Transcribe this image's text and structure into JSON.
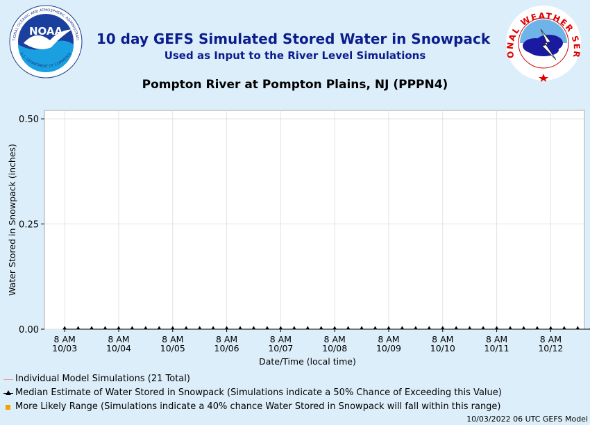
{
  "header": {
    "title": "10 day GEFS Simulated Stored Water in Snowpack",
    "subtitle": "Used as Input to the River Level Simulations",
    "location": "Pompton River at Pompton Plains, NJ (PPPN4)",
    "noaa_logo_text": "NOAA",
    "noaa_ring_text": "NATIONAL OCEANIC AND ATMOSPHERIC ADMINISTRATION",
    "noaa_ring_bottom": "U.S. DEPARTMENT OF COMMERCE",
    "nws_ring_text": "NATIONAL WEATHER SERVICE"
  },
  "chart_data": {
    "type": "line",
    "title": "10 day GEFS Simulated Stored Water in Snowpack",
    "xlabel": "Date/Time (local time)",
    "ylabel": "Water Stored in Snowpack (inches)",
    "ylim": [
      0,
      0.52
    ],
    "yticks": [
      "0.00",
      "0.25",
      "0.50"
    ],
    "ytick_values": [
      0,
      0.25,
      0.5
    ],
    "xticks": [
      {
        "time": "8 AM",
        "date": "10/03"
      },
      {
        "time": "8 AM",
        "date": "10/04"
      },
      {
        "time": "8 AM",
        "date": "10/05"
      },
      {
        "time": "8 AM",
        "date": "10/06"
      },
      {
        "time": "8 AM",
        "date": "10/07"
      },
      {
        "time": "8 AM",
        "date": "10/08"
      },
      {
        "time": "8 AM",
        "date": "10/09"
      },
      {
        "time": "8 AM",
        "date": "10/10"
      },
      {
        "time": "8 AM",
        "date": "10/11"
      },
      {
        "time": "8 AM",
        "date": "10/12"
      }
    ],
    "grid": true,
    "series": [
      {
        "name": "Median Estimate of Water Stored in Snowpack",
        "marker": "triangle",
        "color": "#000000",
        "x": [
          "10/03 08:00",
          "10/03 14:00",
          "10/03 20:00",
          "10/04 02:00",
          "10/04 08:00",
          "10/04 14:00",
          "10/04 20:00",
          "10/05 02:00",
          "10/05 08:00",
          "10/05 14:00",
          "10/05 20:00",
          "10/06 02:00",
          "10/06 08:00",
          "10/06 14:00",
          "10/06 20:00",
          "10/07 02:00",
          "10/07 08:00",
          "10/07 14:00",
          "10/07 20:00",
          "10/08 02:00",
          "10/08 08:00",
          "10/08 14:00",
          "10/08 20:00",
          "10/09 02:00",
          "10/09 08:00",
          "10/09 14:00",
          "10/09 20:00",
          "10/10 02:00",
          "10/10 08:00",
          "10/10 14:00",
          "10/10 20:00",
          "10/11 02:00",
          "10/11 08:00",
          "10/11 14:00",
          "10/11 20:00",
          "10/12 02:00",
          "10/12 08:00",
          "10/12 14:00",
          "10/12 20:00",
          "10/13 02:00"
        ],
        "values": [
          0,
          0,
          0,
          0,
          0,
          0,
          0,
          0,
          0,
          0,
          0,
          0,
          0,
          0,
          0,
          0,
          0,
          0,
          0,
          0,
          0,
          0,
          0,
          0,
          0,
          0,
          0,
          0,
          0,
          0,
          0,
          0,
          0,
          0,
          0,
          0,
          0,
          0,
          0,
          0
        ]
      }
    ],
    "legend": [
      {
        "label": "Individual Model Simulations (21 Total)",
        "color": "#e8a0a0",
        "symbol": "line"
      },
      {
        "label": "Median Estimate of Water Stored in Snowpack (Simulations indicate a 50% Chance of Exceeding this Value)",
        "color": "#000000",
        "symbol": "triangle"
      },
      {
        "label": "More Likely Range (Simulations indicate a 40% chance Water Stored in Snowpack will fall within this range)",
        "color": "#f5a000",
        "symbol": "square"
      }
    ]
  },
  "footer": "10/03/2022 06 UTC GEFS Model"
}
